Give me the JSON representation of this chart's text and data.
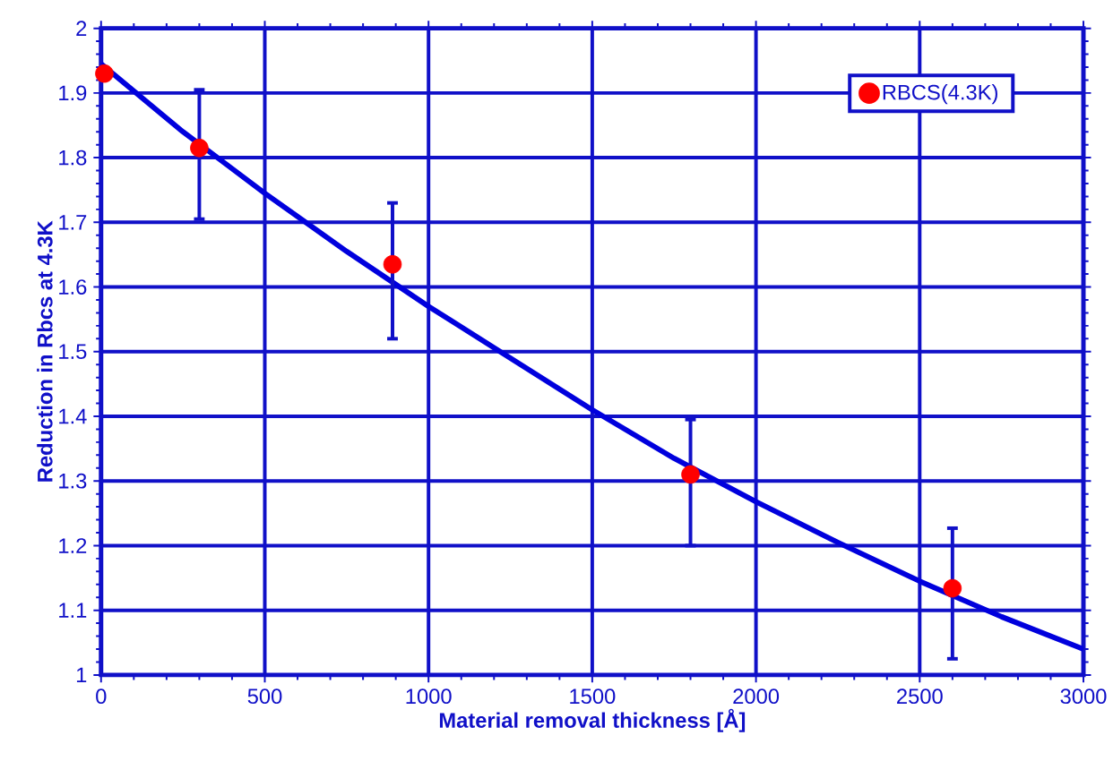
{
  "chart_data": {
    "type": "scatter",
    "xlabel": "Material removal thickness [Å]",
    "ylabel": "Reduction in Rbcs at 4.3K",
    "xlim": [
      0,
      3000
    ],
    "ylim": [
      1,
      2
    ],
    "xticks": [
      0,
      500,
      1000,
      1500,
      2000,
      2500,
      3000
    ],
    "yticks": [
      1,
      1.1,
      1.2,
      1.3,
      1.4,
      1.5,
      1.6,
      1.7,
      1.8,
      1.9,
      2
    ],
    "grid": true,
    "legend": "top right",
    "series": [
      {
        "type": "line",
        "color": "#0000dd",
        "marker": "none",
        "x": [
          0,
          250,
          500,
          750,
          1000,
          1250,
          1500,
          1750,
          2000,
          2250,
          2500,
          2750,
          3000
        ],
        "values": [
          1.945,
          1.84,
          1.745,
          1.655,
          1.57,
          1.49,
          1.41,
          1.335,
          1.268,
          1.205,
          1.145,
          1.09,
          1.04
        ]
      },
      {
        "name": "RBCS(4.3K)",
        "marker": "circle",
        "color": "#ff0000",
        "x": [
          10,
          300,
          890,
          1800,
          2600
        ],
        "values": [
          1.93,
          1.815,
          1.635,
          1.31,
          1.134
        ],
        "errors": [
          null,
          [
            1.705,
            1.905
          ],
          [
            1.52,
            1.73
          ],
          [
            1.2,
            1.395
          ],
          [
            1.025,
            1.227
          ]
        ]
      }
    ]
  }
}
